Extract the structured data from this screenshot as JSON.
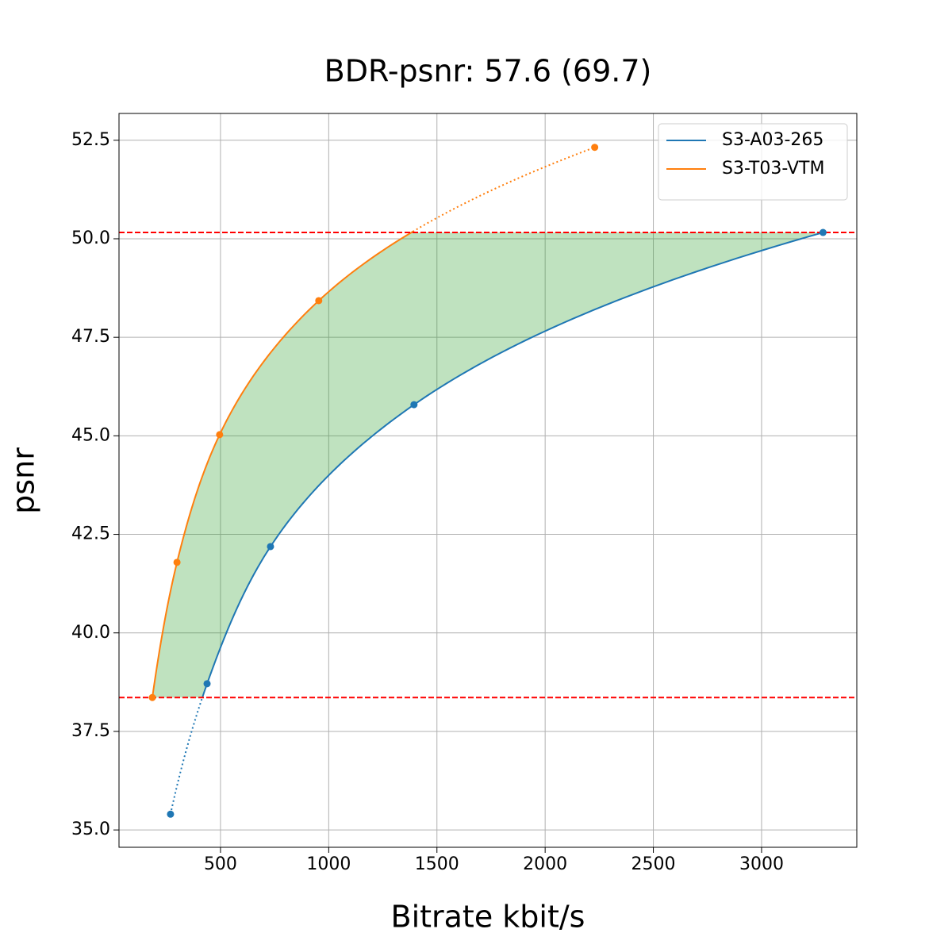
{
  "chart_data": {
    "type": "line",
    "title": "BDR-psnr: 57.6 (69.7)",
    "x_label": "Bitrate kbit/s",
    "y_label": "psnr",
    "series": [
      {
        "name": "S3-A03-265",
        "color": "#1f77b4",
        "x": [
          269,
          438,
          731,
          1394,
          3284
        ],
        "values": [
          35.4,
          38.71,
          42.19,
          45.79,
          50.16
        ]
      },
      {
        "name": "S3-T03-VTM",
        "color": "#ff7f0e",
        "x": [
          185,
          299,
          496,
          954,
          2229
        ],
        "values": [
          38.36,
          41.79,
          45.03,
          48.43,
          52.32
        ]
      }
    ],
    "hlines": [
      38.36,
      50.16
    ],
    "hline_color": "#ff0000",
    "fill_color": "#2ca02c",
    "xlim": [
      31,
      3440
    ],
    "ylim": [
      34.56,
      53.18
    ],
    "xticks": [
      500,
      1000,
      1500,
      2000,
      2500,
      3000
    ],
    "yticks": [
      {
        "value": 35,
        "label": "35.0"
      },
      {
        "value": 37.5,
        "label": "37.5"
      },
      {
        "value": 40,
        "label": "40.0"
      },
      {
        "value": 42.5,
        "label": "42.5"
      },
      {
        "value": 45,
        "label": "45.0"
      },
      {
        "value": 47.5,
        "label": "47.5"
      },
      {
        "value": 50,
        "label": "50.0"
      },
      {
        "value": 52.5,
        "label": "52.5"
      }
    ],
    "grid": true,
    "legend": "upper right"
  }
}
